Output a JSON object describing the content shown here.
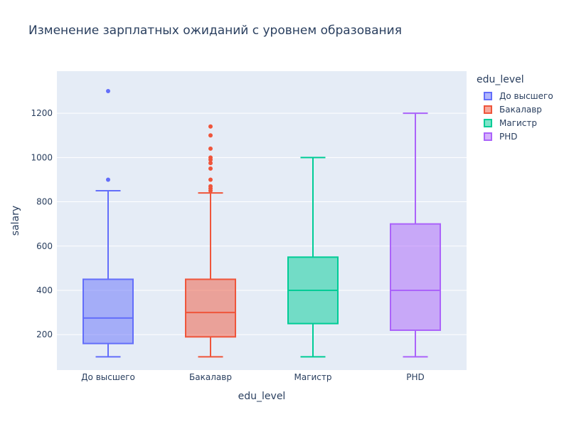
{
  "chart_data": {
    "type": "box",
    "title": "Изменение зарплатных ожиданий с уровнем образования",
    "xlabel": "edu_level",
    "ylabel": "salary",
    "ylim": [
      40,
      1390
    ],
    "yticks": [
      200,
      400,
      600,
      800,
      1000,
      1200
    ],
    "categories": [
      "До высшего",
      "Бакалавр",
      "Магистр",
      "PHD"
    ],
    "legend_title": "edu_level",
    "legend_position": "right",
    "grid": true,
    "colors": {
      "plot_bg": "#e5ecf6",
      "grid": "#ffffff",
      "text": "#2a3f5f"
    },
    "series": [
      {
        "name": "До высшего",
        "color": "#636efa",
        "fill": "rgba(99,110,250,0.5)",
        "min": 100,
        "q1": 160,
        "median": 275,
        "q3": 450,
        "max": 850,
        "outliers": [
          900,
          1300
        ]
      },
      {
        "name": "Бакалавр",
        "color": "#ef553b",
        "fill": "rgba(239,85,59,0.5)",
        "min": 100,
        "q1": 190,
        "median": 300,
        "q3": 450,
        "max": 840,
        "outliers": [
          850,
          860,
          870,
          900,
          950,
          975,
          990,
          1000,
          1040,
          1100,
          1140
        ]
      },
      {
        "name": "Магистр",
        "color": "#00cc96",
        "fill": "rgba(0,204,150,0.5)",
        "min": 100,
        "q1": 250,
        "median": 400,
        "q3": 550,
        "max": 1000,
        "outliers": []
      },
      {
        "name": "PHD",
        "color": "#ab63fa",
        "fill": "rgba(171,99,250,0.5)",
        "min": 100,
        "q1": 220,
        "median": 400,
        "q3": 700,
        "max": 1200,
        "outliers": []
      }
    ]
  }
}
